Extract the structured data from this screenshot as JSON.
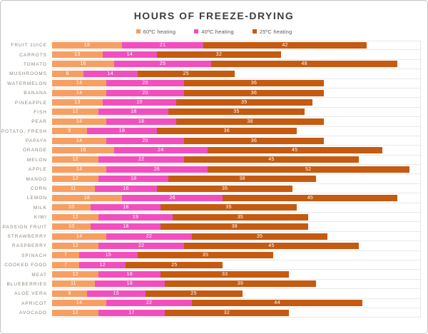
{
  "header": {
    "title": "HOURS OF FREEZE-DRYING"
  },
  "chart_data": {
    "type": "bar",
    "orientation": "horizontal",
    "stacked": true,
    "title": "HOURS OF FREEZE-DRYING",
    "xlabel": "",
    "ylabel": "",
    "xlim": [
      0,
      95
    ],
    "grid": "horizontal category separator lines, light gray; no visible value axis",
    "legend_position": "top-center",
    "value_labels": "white, centered inside each segment",
    "categories": [
      "FRUIT JUICE",
      "CARROTS",
      "TOMATO",
      "MUSHROOMS",
      "WATERMELON",
      "BANANA",
      "PINEAPPLE",
      "FISH",
      "PEAR",
      "POTATO, FRESH",
      "PAPAYA",
      "ORANGE",
      "MELON",
      "APPLE",
      "MANGO",
      "CORN",
      "LEMON",
      "MILK",
      "KIWI",
      "PASSION FRUIT",
      "STRAWBERRY",
      "RASPBERRY",
      "SPINACH",
      "COOKED FOOD",
      "MEAT",
      "BLUEBERRIES",
      "ALOE VERA",
      "APRICOT",
      "AVOCADO"
    ],
    "series": [
      {
        "name": "60ºC heating",
        "color": "#F79F63",
        "values": [
          18,
          13,
          16,
          8,
          14,
          14,
          13,
          12,
          14,
          9,
          14,
          16,
          12,
          14,
          12,
          11,
          18,
          10,
          12,
          10,
          14,
          12,
          7,
          7,
          12,
          11,
          9,
          14,
          12
        ]
      },
      {
        "name": "40ºC heating",
        "color": "#F24FBE",
        "values": [
          21,
          14,
          25,
          14,
          20,
          20,
          19,
          18,
          18,
          18,
          20,
          24,
          22,
          26,
          18,
          16,
          26,
          18,
          19,
          18,
          22,
          22,
          15,
          12,
          16,
          18,
          15,
          22,
          17
        ]
      },
      {
        "name": "25ºC heating",
        "color": "#C55A11",
        "values": [
          42,
          32,
          48,
          25,
          36,
          36,
          35,
          35,
          38,
          36,
          36,
          45,
          45,
          52,
          38,
          35,
          45,
          35,
          35,
          38,
          35,
          45,
          35,
          25,
          33,
          39,
          25,
          44,
          32
        ]
      }
    ]
  },
  "colors": {
    "title_text": "#3e3e3e",
    "legend_text": "#595959",
    "category_label_text": "#8d8478",
    "gridline": "#e9e9e9",
    "frame_border": "#c3c3c3",
    "background": "#ffffff"
  }
}
